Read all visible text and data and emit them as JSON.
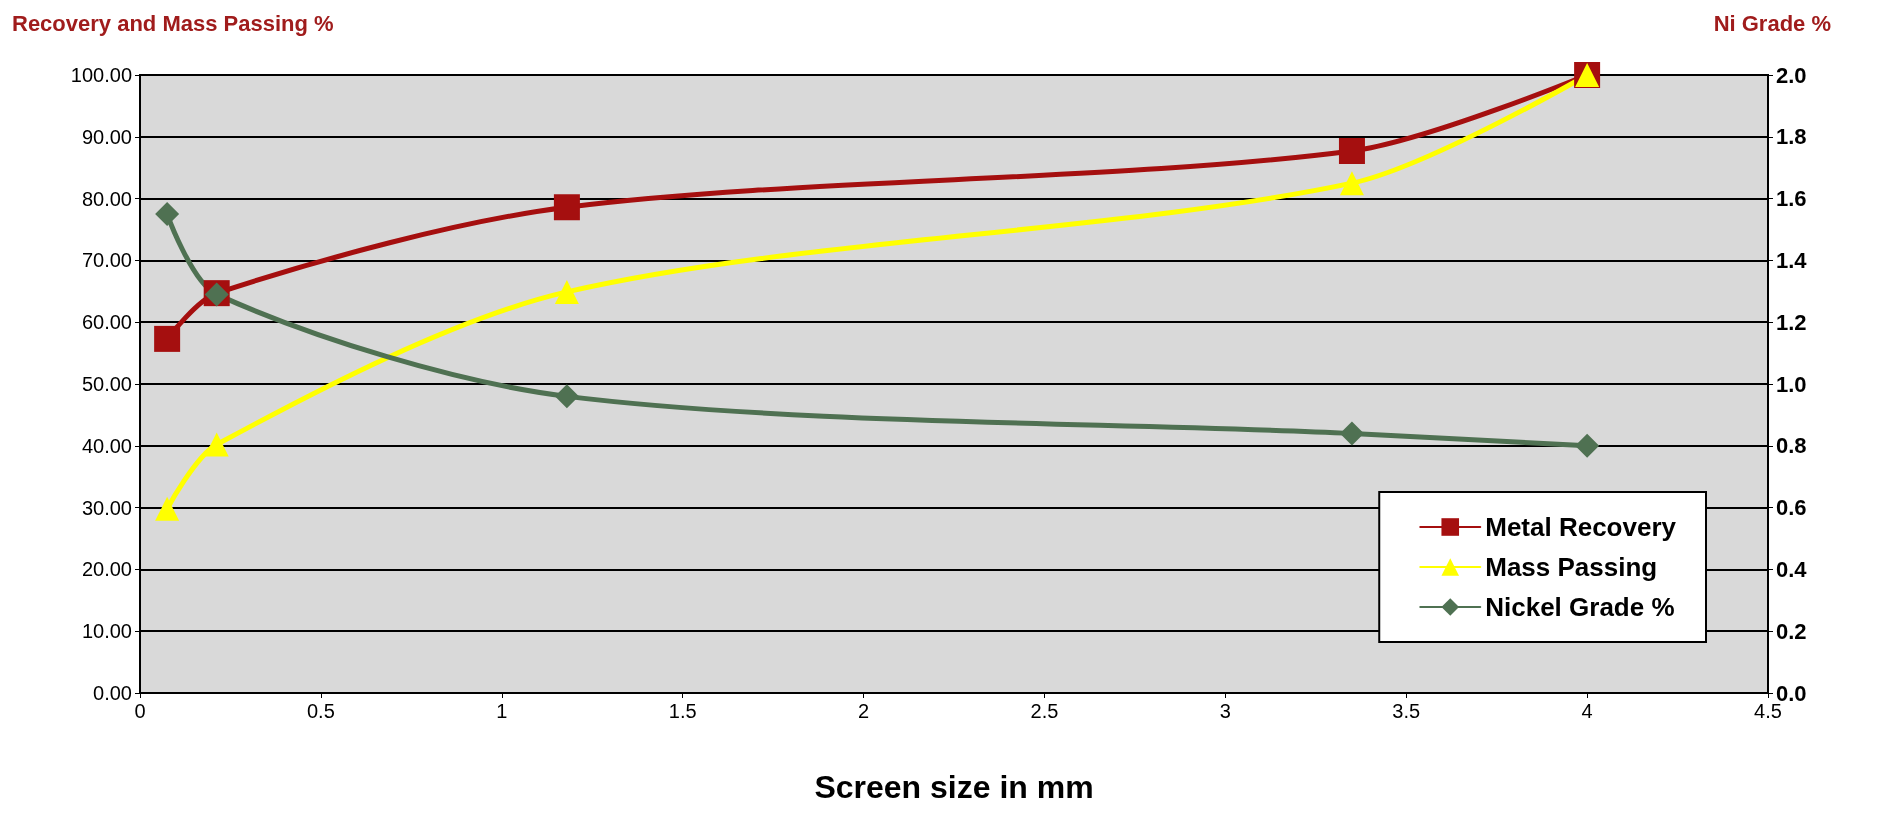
{
  "chart_data": {
    "type": "line",
    "xlabel": "Screen size in mm",
    "ylabel": "Recovery and Mass Passing %",
    "y2label": "Ni Grade %",
    "xlim": [
      0,
      4.5
    ],
    "xticks": [
      0,
      0.5,
      1,
      1.5,
      2,
      2.5,
      3,
      3.5,
      4,
      4.5
    ],
    "ylim": [
      0,
      100
    ],
    "yticks": [
      {
        "value": 0,
        "label": "0.00"
      },
      {
        "value": 10,
        "label": "10.00"
      },
      {
        "value": 20,
        "label": "20.00"
      },
      {
        "value": 30,
        "label": "30.00"
      },
      {
        "value": 40,
        "label": "40.00"
      },
      {
        "value": 50,
        "label": "50.00"
      },
      {
        "value": 60,
        "label": "60.00"
      },
      {
        "value": 70,
        "label": "70.00"
      },
      {
        "value": 80,
        "label": "80.00"
      },
      {
        "value": 90,
        "label": "90.00"
      },
      {
        "value": 100,
        "label": "100.00"
      }
    ],
    "y2lim": [
      0,
      2
    ],
    "y2ticks": [
      {
        "value": 0,
        "label": "0.0"
      },
      {
        "value": 0.2,
        "label": "0.2"
      },
      {
        "value": 0.4,
        "label": "0.4"
      },
      {
        "value": 0.6,
        "label": "0.6"
      },
      {
        "value": 0.8,
        "label": "0.8"
      },
      {
        "value": 1,
        "label": "1.0"
      },
      {
        "value": 1.2,
        "label": "1.2"
      },
      {
        "value": 1.4,
        "label": "1.4"
      },
      {
        "value": 1.6,
        "label": "1.6"
      },
      {
        "value": 1.8,
        "label": "1.8"
      },
      {
        "value": 2,
        "label": "2.0"
      }
    ],
    "x": [
      0.075,
      0.212,
      1.18,
      3.35,
      4.0
    ],
    "series": [
      {
        "name": "Metal Recovery",
        "color": "#a50f0f",
        "marker": "square",
        "values": [
          57.3,
          64.7,
          78.6,
          87.7,
          100
        ]
      },
      {
        "name": "Mass Passing",
        "color": "#ffff00",
        "marker": "triangle",
        "values": [
          29.8,
          40.2,
          64.9,
          82.5,
          100
        ]
      },
      {
        "name": "Nickel Grade %",
        "color": "#4f7152",
        "marker": "diamond",
        "axis": "y2",
        "values": [
          1.55,
          1.29,
          0.96,
          0.84,
          0.8
        ]
      }
    ],
    "grid": "y",
    "legend": "bottom right",
    "line_style": "solid"
  }
}
